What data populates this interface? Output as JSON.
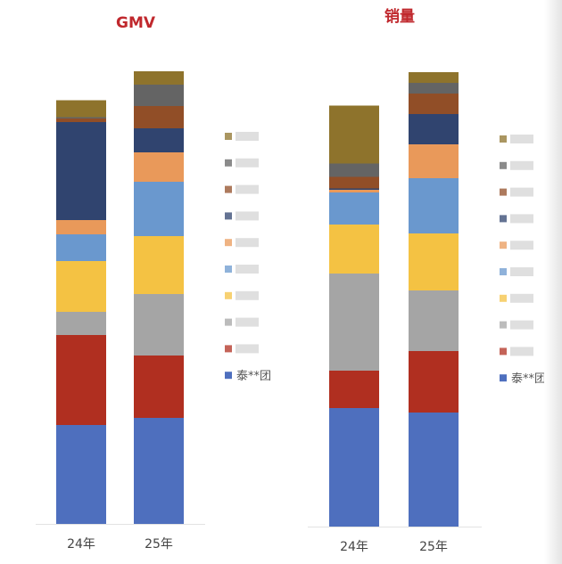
{
  "colors": [
    "#4E6FBE",
    "#B02F20",
    "#A5A5A5",
    "#F4C243",
    "#6A98CE",
    "#E9995A",
    "#30446F",
    "#914E27",
    "#646464",
    "#8E732C"
  ],
  "chart_data": [
    {
      "type": "bar",
      "stacked": true,
      "title": "GMV",
      "categories": [
        "24年",
        "25年"
      ],
      "ylim": [
        0,
        520
      ],
      "legend_position": "right",
      "series": [
        {
          "name": "泰**团",
          "values": [
            111,
            119
          ]
        },
        {
          "name": "",
          "values": [
            101,
            70
          ]
        },
        {
          "name": "",
          "values": [
            26,
            69
          ]
        },
        {
          "name": "",
          "values": [
            57,
            65
          ]
        },
        {
          "name": "",
          "values": [
            30,
            61
          ]
        },
        {
          "name": "",
          "values": [
            16,
            33
          ]
        },
        {
          "name": "",
          "values": [
            110,
            27
          ]
        },
        {
          "name": "",
          "values": [
            4,
            25
          ]
        },
        {
          "name": "",
          "values": [
            1.5,
            24
          ]
        },
        {
          "name": "",
          "values": [
            19,
            15
          ]
        }
      ]
    },
    {
      "type": "bar",
      "stacked": true,
      "title": "销量",
      "categories": [
        "24年",
        "25年"
      ],
      "ylim": [
        0,
        520
      ],
      "legend_position": "right",
      "series": [
        {
          "name": "泰**团",
          "values": [
            133,
            128
          ]
        },
        {
          "name": "",
          "values": [
            42,
            69
          ]
        },
        {
          "name": "",
          "values": [
            109,
            68
          ]
        },
        {
          "name": "",
          "values": [
            55,
            64
          ]
        },
        {
          "name": "",
          "values": [
            36,
            62
          ]
        },
        {
          "name": "",
          "values": [
            3,
            38
          ]
        },
        {
          "name": "",
          "values": [
            1.5,
            34
          ]
        },
        {
          "name": "",
          "values": [
            13,
            23
          ]
        },
        {
          "name": "",
          "values": [
            15,
            12
          ]
        },
        {
          "name": "",
          "values": [
            65,
            12
          ]
        }
      ]
    }
  ]
}
